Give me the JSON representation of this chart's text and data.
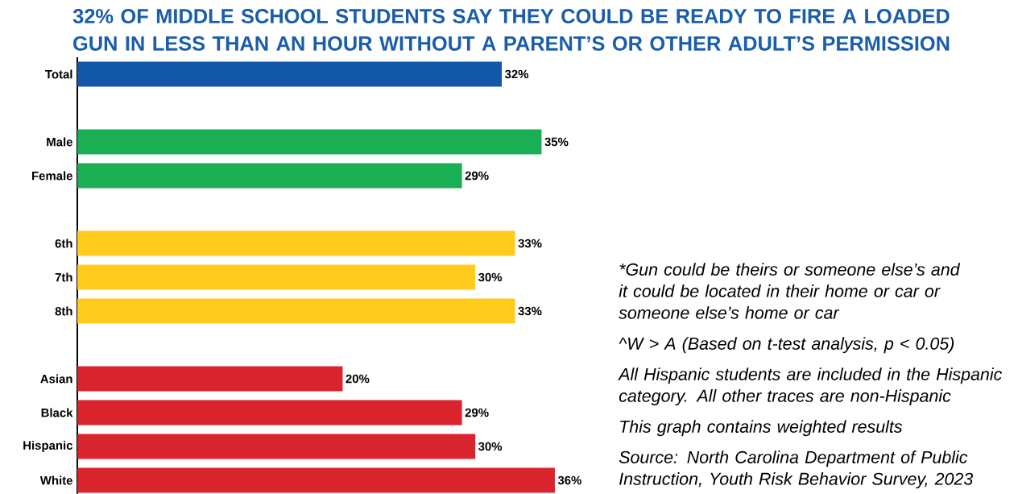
{
  "chart_data": {
    "type": "bar",
    "orientation": "horizontal",
    "title": "32% OF MIDDLE SCHOOL STUDENTS SAY THEY COULD BE READY TO FIRE A LOADED GUN IN LESS THAN AN HOUR WITHOUT A PARENT’S OR OTHER ADULT’S PERMISSION",
    "categories": [
      "Total",
      null,
      "Male",
      "Female",
      null,
      "6th",
      "7th",
      "8th",
      null,
      "Asian",
      "Black",
      "Hispanic",
      "White"
    ],
    "values": [
      32,
      null,
      35,
      29,
      null,
      33,
      30,
      33,
      null,
      20,
      29,
      30,
      36
    ],
    "colors": [
      "#1257a8",
      null,
      "#1aaf54",
      "#1aaf54",
      null,
      "#ffcb1d",
      "#ffcb1d",
      "#ffcb1d",
      null,
      "#d9232d",
      "#d9232d",
      "#d9232d",
      "#d9232d"
    ],
    "value_labels": [
      "32%",
      null,
      "35%",
      "29%",
      null,
      "33%",
      "30%",
      "33%",
      null,
      "20%",
      "29%",
      "30%",
      "36%"
    ],
    "tick_labels": "y",
    "annotations": [
      "*Gun could be theirs or someone else’s and it could be located in their home or car or someone else’s home or car",
      "^W > A (Based on t-test analysis, p < 0.05)",
      "All Hispanic students are included in the Hispanic category. All other traces are non-Hispanic",
      "This graph contains weighted results",
      "Source: North Carolina Department of Public Instruction, Youth Risk Behavior Survey, 2023"
    ]
  }
}
